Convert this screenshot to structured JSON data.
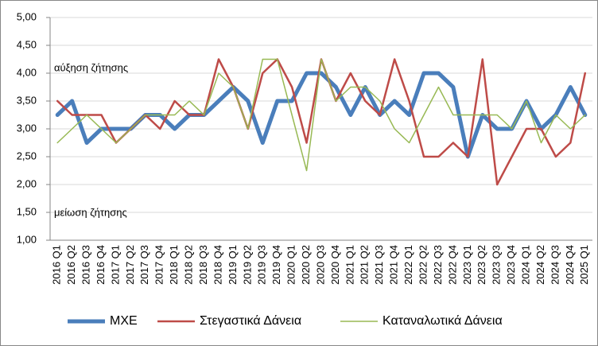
{
  "chart_data": {
    "type": "line",
    "annotations": [
      "αύξηση ζήτησης",
      "μείωση ζήτησης"
    ],
    "categories": [
      "2016 Q1",
      "2016 Q2",
      "2016 Q3",
      "2016 Q4",
      "2017 Q1",
      "2017 Q2",
      "2017 Q3",
      "2017 Q4",
      "2018 Q1",
      "2018 Q2",
      "2018 Q3",
      "2018 Q4",
      "2019 Q1",
      "2019 Q2",
      "2019 Q3",
      "2019 Q4",
      "2020 Q1",
      "2020 Q2",
      "2020 Q3",
      "2020 Q4",
      "2021 Q1",
      "2021 Q2",
      "2021 Q3",
      "2021 Q4",
      "2022 Q1",
      "2022 Q2",
      "2022 Q3",
      "2022 Q4",
      "2023 Q1",
      "2023 Q2",
      "2023 Q3",
      "2023 Q4",
      "2024 Q1",
      "2024 Q2",
      "2024 Q3",
      "2024 Q4",
      "2025 Q1"
    ],
    "series": [
      {
        "name": "ΜΧΕ",
        "color": "#4a7ebb",
        "width": 5,
        "values": [
          3.25,
          3.5,
          2.75,
          3.0,
          3.0,
          3.0,
          3.25,
          3.25,
          3.0,
          3.25,
          3.25,
          3.5,
          3.75,
          3.5,
          2.75,
          3.5,
          3.5,
          4.0,
          4.0,
          3.75,
          3.25,
          3.75,
          3.25,
          3.5,
          3.25,
          4.0,
          4.0,
          3.75,
          2.5,
          3.25,
          3.0,
          3.0,
          3.5,
          3.0,
          3.25,
          3.75,
          3.25
        ]
      },
      {
        "name": "Στεγαστικά Δάνεια",
        "color": "#be4b48",
        "width": 2.5,
        "values": [
          3.5,
          3.25,
          3.25,
          3.25,
          2.75,
          3.0,
          3.25,
          3.0,
          3.5,
          3.25,
          3.25,
          4.25,
          3.75,
          3.0,
          4.0,
          4.25,
          3.75,
          2.75,
          4.25,
          3.5,
          4.0,
          3.5,
          3.25,
          4.25,
          3.5,
          2.5,
          2.5,
          2.75,
          2.5,
          4.25,
          2.0,
          2.5,
          3.0,
          3.0,
          2.5,
          2.75,
          4.0
        ]
      },
      {
        "name": "Καταναλωτικά Δάνεια",
        "color": "#98b954",
        "width": 1.5,
        "values": [
          2.75,
          3.0,
          3.25,
          3.0,
          2.75,
          3.0,
          3.25,
          3.25,
          3.25,
          3.5,
          3.25,
          4.0,
          3.75,
          3.0,
          4.25,
          4.25,
          3.25,
          2.25,
          4.25,
          3.5,
          3.75,
          3.75,
          3.5,
          3.0,
          2.75,
          3.25,
          3.75,
          3.25,
          3.25,
          3.25,
          3.25,
          3.0,
          3.5,
          2.75,
          3.25,
          3.0,
          3.25
        ]
      }
    ],
    "ylim": [
      1.0,
      5.0
    ],
    "yticks": [
      {
        "value": 1.0,
        "label": "1,00"
      },
      {
        "value": 1.5,
        "label": "1,50"
      },
      {
        "value": 2.0,
        "label": "2,00"
      },
      {
        "value": 2.5,
        "label": "2,50"
      },
      {
        "value": 3.0,
        "label": "3,00"
      },
      {
        "value": 3.5,
        "label": "3,50"
      },
      {
        "value": 4.0,
        "label": "4,00"
      },
      {
        "value": 4.5,
        "label": "4,50"
      },
      {
        "value": 5.0,
        "label": "5,00"
      }
    ],
    "grid": true,
    "legend": "bottom"
  }
}
